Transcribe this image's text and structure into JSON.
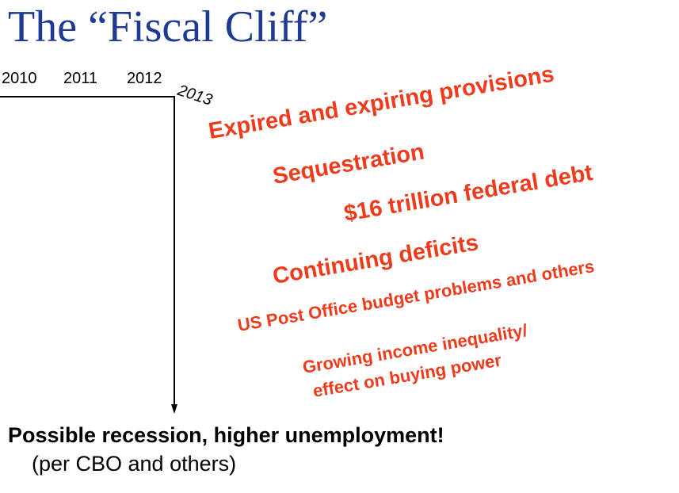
{
  "slide": {
    "title": "The “Fiscal Cliff”",
    "timeline": {
      "years": [
        "2010",
        "2011",
        "2012"
      ],
      "cliff_year": "2013"
    },
    "causes": [
      "Expired and expiring provisions",
      "Sequestration",
      "$16 trillion federal debt",
      "Continuing deficits",
      "US Post Office budget problems and others",
      "Growing income inequality/",
      "effect on buying power"
    ],
    "outcome": "Possible recession, higher unemployment!",
    "outcome_note": "(per CBO and others)"
  },
  "colors": {
    "title": "#1f3a93",
    "causes": "#ee3b1c",
    "text": "#000000"
  }
}
